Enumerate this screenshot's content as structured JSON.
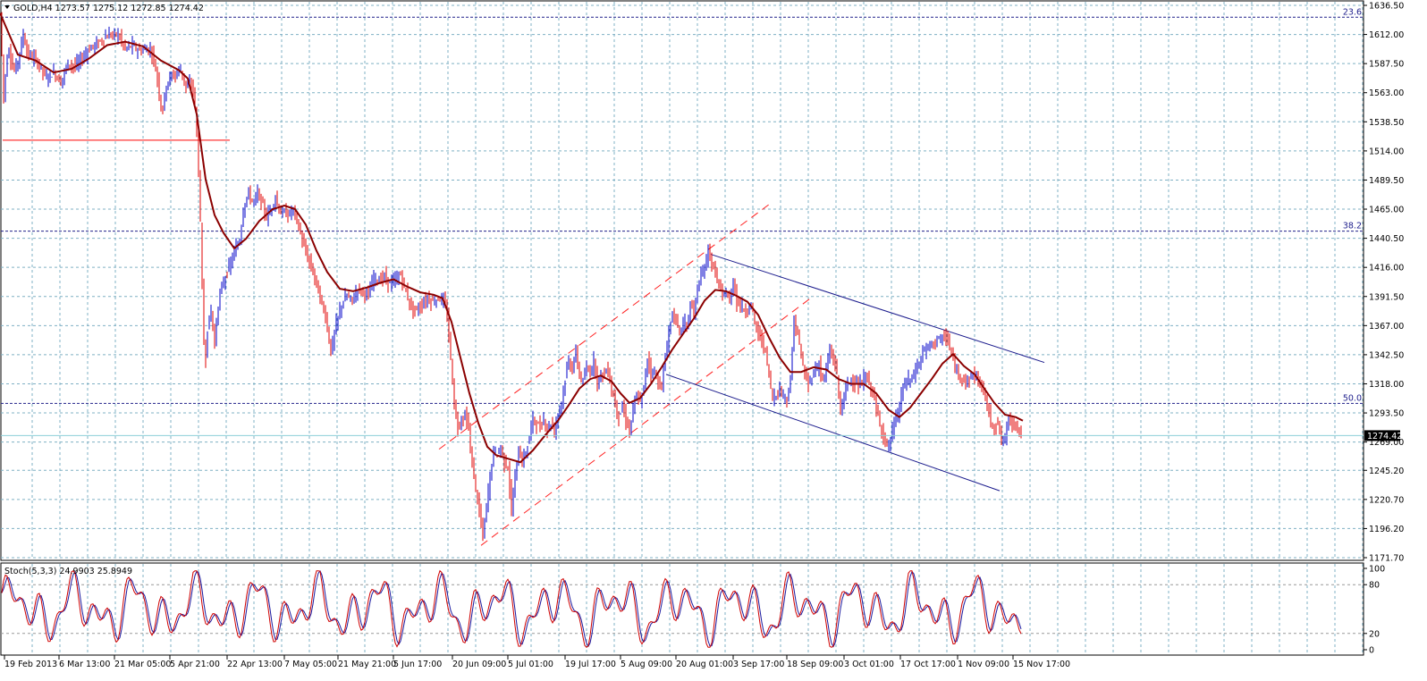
{
  "chart_data": {
    "type": "candlestick",
    "symbol_header": "GOLD,H4  1273.57 1275.12 1272.85 1274.42",
    "price_axis": {
      "range": [
        1171.7,
        1636.5
      ],
      "ticks": [
        "1636.50",
        "1612.00",
        "1587.50",
        "1563.00",
        "1538.50",
        "1514.00",
        "1489.50",
        "1465.00",
        "1440.50",
        "1416.00",
        "1391.50",
        "1367.00",
        "1342.50",
        "1318.00",
        "1293.50",
        "1269.00",
        "1245.20",
        "1220.70",
        "1196.20",
        "1171.70"
      ]
    },
    "current_price": "1274.42",
    "time_axis": {
      "labels": [
        "19 Feb 2013",
        "6 Mar 13:00",
        "21 Mar 05:00",
        "5 Apr 21:00",
        "22 Apr 13:00",
        "7 May 05:00",
        "21 May 21:00",
        "5 Jun 17:00",
        "20 Jun 09:00",
        "5 Jul 01:00",
        "19 Jul 17:00",
        "5 Aug 09:00",
        "20 Aug 01:00",
        "3 Sep 17:00",
        "18 Sep 09:00",
        "3 Oct 01:00",
        "17 Oct 17:00",
        "1 Nov 09:00",
        "15 Nov 17:00"
      ]
    },
    "fibonacci_levels": [
      {
        "label": "23.6",
        "price": 1626.5
      },
      {
        "label": "38.2",
        "price": 1446.5
      },
      {
        "label": "50.0",
        "price": 1301.5
      }
    ],
    "horizontal_line_price": 1523.0,
    "price_path": [
      [
        0,
        1630
      ],
      [
        4,
        1560
      ],
      [
        9,
        1603
      ],
      [
        15,
        1580
      ],
      [
        20,
        1590
      ],
      [
        26,
        1612
      ],
      [
        31,
        1595
      ],
      [
        38,
        1592
      ],
      [
        45,
        1585
      ],
      [
        52,
        1575
      ],
      [
        60,
        1580
      ],
      [
        68,
        1572
      ],
      [
        76,
        1588
      ],
      [
        84,
        1585
      ],
      [
        92,
        1592
      ],
      [
        100,
        1600
      ],
      [
        108,
        1604
      ],
      [
        116,
        1609
      ],
      [
        124,
        1612
      ],
      [
        132,
        1612
      ],
      [
        140,
        1600
      ],
      [
        148,
        1603
      ],
      [
        156,
        1598
      ],
      [
        164,
        1600
      ],
      [
        170,
        1597
      ],
      [
        176,
        1575
      ],
      [
        181,
        1545
      ],
      [
        186,
        1570
      ],
      [
        191,
        1577
      ],
      [
        196,
        1578
      ],
      [
        201,
        1584
      ],
      [
        205,
        1576
      ],
      [
        209,
        1565
      ],
      [
        213,
        1572
      ],
      [
        217,
        1563
      ],
      [
        220,
        1528
      ],
      [
        223,
        1480
      ],
      [
        226,
        1400
      ],
      [
        229,
        1328
      ],
      [
        232,
        1365
      ],
      [
        236,
        1380
      ],
      [
        240,
        1352
      ],
      [
        244,
        1385
      ],
      [
        248,
        1400
      ],
      [
        253,
        1410
      ],
      [
        258,
        1420
      ],
      [
        263,
        1430
      ],
      [
        268,
        1440
      ],
      [
        273,
        1470
      ],
      [
        278,
        1478
      ],
      [
        283,
        1470
      ],
      [
        288,
        1478
      ],
      [
        293,
        1470
      ],
      [
        298,
        1458
      ],
      [
        303,
        1465
      ],
      [
        308,
        1475
      ],
      [
        313,
        1462
      ],
      [
        318,
        1462
      ],
      [
        323,
        1460
      ],
      [
        328,
        1465
      ],
      [
        334,
        1450
      ],
      [
        340,
        1433
      ],
      [
        346,
        1420
      ],
      [
        352,
        1408
      ],
      [
        358,
        1390
      ],
      [
        364,
        1375
      ],
      [
        370,
        1345
      ],
      [
        376,
        1368
      ],
      [
        382,
        1385
      ],
      [
        388,
        1392
      ],
      [
        394,
        1388
      ],
      [
        400,
        1398
      ],
      [
        406,
        1396
      ],
      [
        412,
        1392
      ],
      [
        418,
        1408
      ],
      [
        424,
        1405
      ],
      [
        430,
        1408
      ],
      [
        436,
        1402
      ],
      [
        442,
        1405
      ],
      [
        448,
        1410
      ],
      [
        454,
        1395
      ],
      [
        460,
        1382
      ],
      [
        466,
        1380
      ],
      [
        472,
        1385
      ],
      [
        478,
        1390
      ],
      [
        484,
        1387
      ],
      [
        490,
        1390
      ],
      [
        496,
        1388
      ],
      [
        500,
        1375
      ],
      [
        504,
        1340
      ],
      [
        508,
        1300
      ],
      [
        512,
        1282
      ],
      [
        516,
        1288
      ],
      [
        520,
        1292
      ],
      [
        524,
        1280
      ],
      [
        528,
        1250
      ],
      [
        532,
        1230
      ],
      [
        536,
        1210
      ],
      [
        540,
        1190
      ],
      [
        544,
        1215
      ],
      [
        548,
        1240
      ],
      [
        552,
        1262
      ],
      [
        556,
        1258
      ],
      [
        560,
        1265
      ],
      [
        564,
        1252
      ],
      [
        568,
        1248
      ],
      [
        572,
        1210
      ],
      [
        576,
        1240
      ],
      [
        580,
        1262
      ],
      [
        584,
        1252
      ],
      [
        588,
        1260
      ],
      [
        592,
        1273
      ],
      [
        596,
        1290
      ],
      [
        600,
        1284
      ],
      [
        604,
        1281
      ],
      [
        608,
        1288
      ],
      [
        612,
        1280
      ],
      [
        616,
        1285
      ],
      [
        620,
        1278
      ],
      [
        624,
        1293
      ],
      [
        628,
        1303
      ],
      [
        632,
        1322
      ],
      [
        636,
        1338
      ],
      [
        640,
        1330
      ],
      [
        644,
        1345
      ],
      [
        648,
        1325
      ],
      [
        652,
        1320
      ],
      [
        656,
        1330
      ],
      [
        660,
        1328
      ],
      [
        664,
        1338
      ],
      [
        668,
        1320
      ],
      [
        672,
        1326
      ],
      [
        676,
        1327
      ],
      [
        680,
        1330
      ],
      [
        684,
        1312
      ],
      [
        688,
        1302
      ],
      [
        692,
        1290
      ],
      [
        696,
        1298
      ],
      [
        700,
        1288
      ],
      [
        704,
        1278
      ],
      [
        708,
        1296
      ],
      [
        712,
        1308
      ],
      [
        716,
        1302
      ],
      [
        720,
        1315
      ],
      [
        724,
        1340
      ],
      [
        728,
        1328
      ],
      [
        732,
        1328
      ],
      [
        736,
        1320
      ],
      [
        740,
        1315
      ],
      [
        744,
        1340
      ],
      [
        748,
        1362
      ],
      [
        752,
        1378
      ],
      [
        756,
        1370
      ],
      [
        760,
        1362
      ],
      [
        764,
        1370
      ],
      [
        768,
        1366
      ],
      [
        772,
        1384
      ],
      [
        776,
        1378
      ],
      [
        780,
        1398
      ],
      [
        784,
        1408
      ],
      [
        788,
        1415
      ],
      [
        792,
        1432
      ],
      [
        796,
        1418
      ],
      [
        800,
        1412
      ],
      [
        804,
        1400
      ],
      [
        808,
        1392
      ],
      [
        812,
        1395
      ],
      [
        816,
        1386
      ],
      [
        820,
        1405
      ],
      [
        824,
        1388
      ],
      [
        828,
        1384
      ],
      [
        832,
        1380
      ],
      [
        836,
        1380
      ],
      [
        840,
        1385
      ],
      [
        844,
        1370
      ],
      [
        848,
        1360
      ],
      [
        852,
        1355
      ],
      [
        856,
        1345
      ],
      [
        860,
        1325
      ],
      [
        864,
        1305
      ],
      [
        868,
        1310
      ],
      [
        872,
        1312
      ],
      [
        876,
        1310
      ],
      [
        880,
        1305
      ],
      [
        884,
        1320
      ],
      [
        888,
        1372
      ],
      [
        892,
        1360
      ],
      [
        896,
        1340
      ],
      [
        900,
        1325
      ],
      [
        904,
        1318
      ],
      [
        908,
        1325
      ],
      [
        912,
        1330
      ],
      [
        916,
        1335
      ],
      [
        920,
        1320
      ],
      [
        924,
        1330
      ],
      [
        928,
        1345
      ],
      [
        932,
        1340
      ],
      [
        936,
        1325
      ],
      [
        940,
        1295
      ],
      [
        944,
        1308
      ],
      [
        948,
        1318
      ],
      [
        952,
        1322
      ],
      [
        956,
        1320
      ],
      [
        960,
        1315
      ],
      [
        964,
        1318
      ],
      [
        968,
        1325
      ],
      [
        972,
        1318
      ],
      [
        976,
        1312
      ],
      [
        980,
        1295
      ],
      [
        984,
        1285
      ],
      [
        988,
        1275
      ],
      [
        992,
        1265
      ],
      [
        996,
        1270
      ],
      [
        1000,
        1285
      ],
      [
        1004,
        1292
      ],
      [
        1008,
        1308
      ],
      [
        1012,
        1318
      ],
      [
        1016,
        1322
      ],
      [
        1020,
        1322
      ],
      [
        1024,
        1330
      ],
      [
        1028,
        1335
      ],
      [
        1032,
        1345
      ],
      [
        1036,
        1348
      ],
      [
        1040,
        1350
      ],
      [
        1044,
        1352
      ],
      [
        1048,
        1358
      ],
      [
        1052,
        1353
      ],
      [
        1056,
        1358
      ],
      [
        1060,
        1355
      ],
      [
        1064,
        1342
      ],
      [
        1068,
        1332
      ],
      [
        1072,
        1325
      ],
      [
        1076,
        1325
      ],
      [
        1080,
        1320
      ],
      [
        1084,
        1322
      ],
      [
        1088,
        1326
      ],
      [
        1092,
        1324
      ],
      [
        1096,
        1318
      ],
      [
        1100,
        1312
      ],
      [
        1104,
        1300
      ],
      [
        1108,
        1285
      ],
      [
        1112,
        1283
      ],
      [
        1116,
        1285
      ],
      [
        1120,
        1270
      ],
      [
        1124,
        1272
      ],
      [
        1128,
        1290
      ],
      [
        1132,
        1285
      ],
      [
        1136,
        1285
      ],
      [
        1140,
        1278
      ],
      [
        1143,
        1274.42
      ]
    ],
    "ma_path": [
      [
        0,
        1630
      ],
      [
        20,
        1595
      ],
      [
        40,
        1590
      ],
      [
        60,
        1580
      ],
      [
        80,
        1583
      ],
      [
        100,
        1592
      ],
      [
        120,
        1603
      ],
      [
        140,
        1606
      ],
      [
        160,
        1602
      ],
      [
        180,
        1590
      ],
      [
        200,
        1582
      ],
      [
        210,
        1575
      ],
      [
        220,
        1545
      ],
      [
        230,
        1490
      ],
      [
        240,
        1460
      ],
      [
        250,
        1445
      ],
      [
        262,
        1432
      ],
      [
        275,
        1440
      ],
      [
        290,
        1455
      ],
      [
        305,
        1465
      ],
      [
        318,
        1468
      ],
      [
        330,
        1465
      ],
      [
        342,
        1452
      ],
      [
        354,
        1430
      ],
      [
        366,
        1412
      ],
      [
        380,
        1398
      ],
      [
        395,
        1396
      ],
      [
        410,
        1399
      ],
      [
        425,
        1403
      ],
      [
        440,
        1406
      ],
      [
        455,
        1400
      ],
      [
        470,
        1395
      ],
      [
        485,
        1393
      ],
      [
        495,
        1390
      ],
      [
        505,
        1370
      ],
      [
        515,
        1340
      ],
      [
        525,
        1310
      ],
      [
        535,
        1285
      ],
      [
        545,
        1265
      ],
      [
        555,
        1258
      ],
      [
        568,
        1255
      ],
      [
        582,
        1252
      ],
      [
        596,
        1262
      ],
      [
        610,
        1275
      ],
      [
        624,
        1287
      ],
      [
        636,
        1300
      ],
      [
        648,
        1314
      ],
      [
        660,
        1322
      ],
      [
        672,
        1325
      ],
      [
        684,
        1320
      ],
      [
        694,
        1310
      ],
      [
        704,
        1302
      ],
      [
        716,
        1306
      ],
      [
        728,
        1318
      ],
      [
        740,
        1332
      ],
      [
        752,
        1347
      ],
      [
        764,
        1360
      ],
      [
        776,
        1373
      ],
      [
        788,
        1388
      ],
      [
        800,
        1397
      ],
      [
        812,
        1396
      ],
      [
        824,
        1392
      ],
      [
        836,
        1387
      ],
      [
        848,
        1376
      ],
      [
        860,
        1357
      ],
      [
        872,
        1340
      ],
      [
        884,
        1328
      ],
      [
        896,
        1328
      ],
      [
        910,
        1332
      ],
      [
        924,
        1330
      ],
      [
        938,
        1322
      ],
      [
        952,
        1318
      ],
      [
        966,
        1318
      ],
      [
        980,
        1310
      ],
      [
        994,
        1296
      ],
      [
        1006,
        1290
      ],
      [
        1018,
        1298
      ],
      [
        1030,
        1310
      ],
      [
        1042,
        1322
      ],
      [
        1054,
        1335
      ],
      [
        1066,
        1343
      ],
      [
        1078,
        1333
      ],
      [
        1090,
        1326
      ],
      [
        1100,
        1315
      ],
      [
        1112,
        1302
      ],
      [
        1124,
        1292
      ],
      [
        1136,
        1290
      ],
      [
        1144,
        1287
      ]
    ],
    "channel_lines": [
      {
        "color": "red-dashed",
        "from": [
          491,
          1263
        ],
        "to": [
          862,
          1470
        ]
      },
      {
        "color": "red-dashed",
        "from": [
          538,
          1182
        ],
        "to": [
          910,
          1392
        ]
      },
      {
        "color": "navy",
        "from": [
          795,
          1427
        ],
        "to": [
          1168,
          1336
        ]
      },
      {
        "color": "navy",
        "from": [
          745,
          1326
        ],
        "to": [
          1118,
          1228
        ]
      }
    ],
    "stochastic": {
      "header": "Stoch(5,3,3) 24.9903 25.8949",
      "range": [
        0,
        100
      ],
      "ticks": [
        "100",
        "80",
        "20",
        "0"
      ],
      "levels": [
        20,
        80
      ]
    },
    "colors": {
      "grid": "#7fb0c4",
      "bull": "#0000c8",
      "bear": "#e00000",
      "ma": "#8b0000",
      "fibo": "#20208a",
      "stoch_main": "#d00000",
      "stoch_signal": "#1a1aa0"
    }
  }
}
